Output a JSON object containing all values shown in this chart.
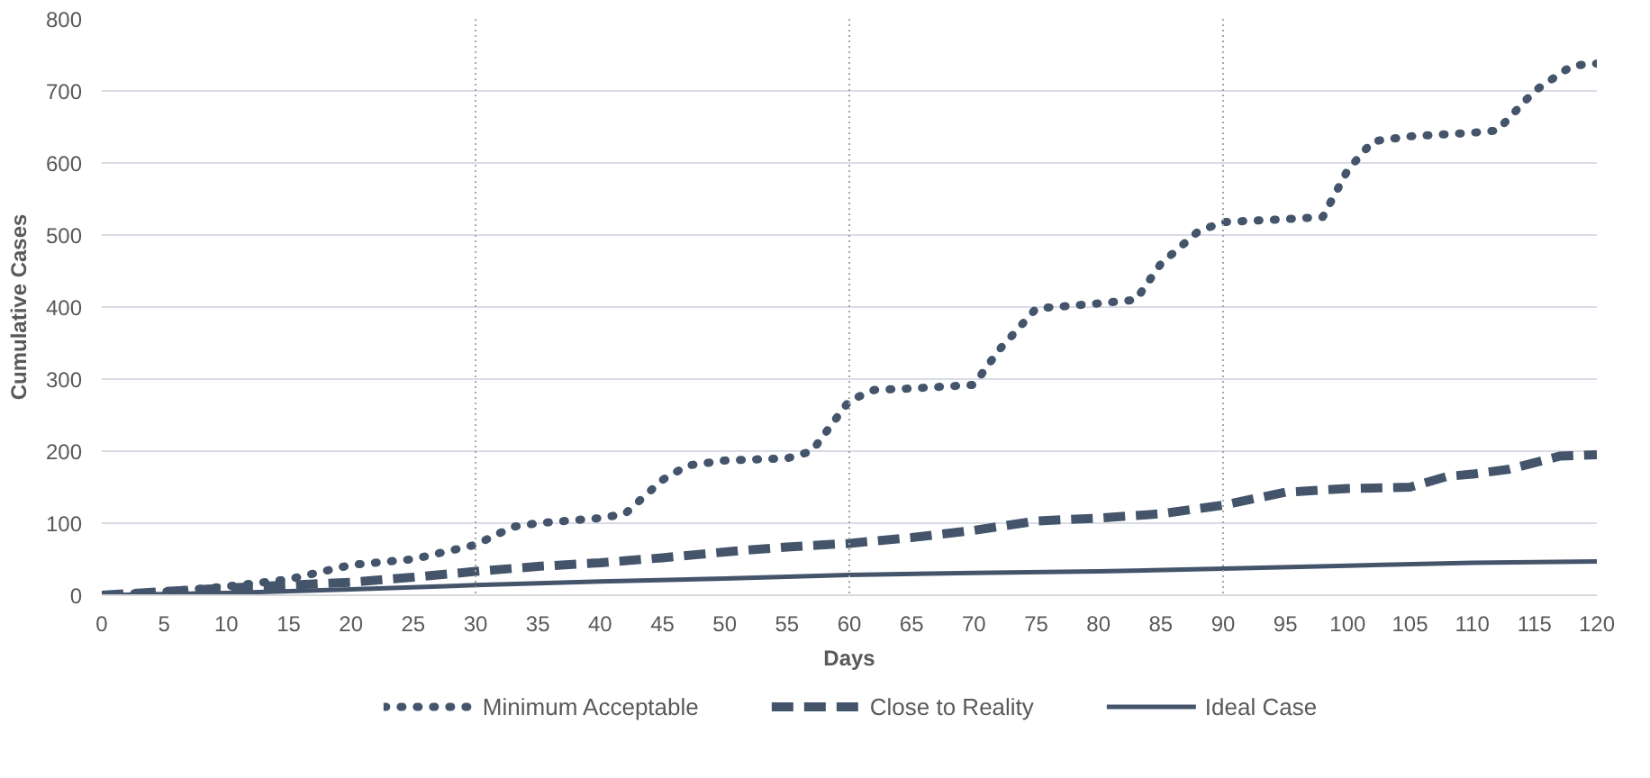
{
  "chart_data": {
    "type": "line",
    "xlabel": "Days",
    "ylabel": "Cumulative Cases",
    "xlim": [
      0,
      120
    ],
    "xticks": [
      0,
      5,
      10,
      15,
      20,
      25,
      30,
      35,
      40,
      45,
      50,
      55,
      60,
      65,
      70,
      75,
      80,
      85,
      90,
      95,
      100,
      105,
      110,
      115,
      120
    ],
    "ylim": [
      0,
      800
    ],
    "yticks": [
      0,
      100,
      200,
      300,
      400,
      500,
      600,
      700,
      800
    ],
    "grid": "y",
    "legend": "bottom",
    "ref_lines": [
      {
        "axis": "x",
        "value": 30,
        "line_style": "dotted",
        "color": "#a6a6a6"
      },
      {
        "axis": "x",
        "value": 60,
        "line_style": "dotted",
        "color": "#a6a6a6"
      },
      {
        "axis": "x",
        "value": 90,
        "line_style": "dotted",
        "color": "#a6a6a6"
      }
    ],
    "series": [
      {
        "name": "Minimum Acceptable",
        "color": "#44546a",
        "line_style": "dotted",
        "x": [
          0,
          5,
          10,
          15,
          20,
          25,
          30,
          33,
          35,
          40,
          42,
          45,
          47,
          50,
          55,
          57,
          60,
          62,
          65,
          70,
          72,
          75,
          80,
          83,
          85,
          88,
          90,
          95,
          98,
          100,
          102,
          105,
          110,
          112,
          115,
          118,
          120
        ],
        "values": [
          0,
          5,
          12,
          22,
          42,
          50,
          70,
          95,
          100,
          107,
          113,
          160,
          180,
          187,
          190,
          200,
          270,
          285,
          287,
          292,
          340,
          398,
          405,
          410,
          460,
          505,
          518,
          522,
          525,
          590,
          630,
          637,
          642,
          645,
          700,
          735,
          738
        ]
      },
      {
        "name": "Close to Reality",
        "color": "#44546a",
        "line_style": "dashed",
        "x": [
          0,
          5,
          10,
          15,
          20,
          25,
          30,
          35,
          40,
          45,
          50,
          55,
          60,
          65,
          70,
          75,
          80,
          85,
          90,
          95,
          100,
          105,
          108,
          110,
          113,
          117,
          120
        ],
        "values": [
          0,
          5,
          10,
          14,
          18,
          25,
          33,
          40,
          45,
          52,
          60,
          67,
          72,
          80,
          90,
          103,
          107,
          113,
          125,
          143,
          148,
          150,
          165,
          168,
          175,
          193,
          195
        ]
      },
      {
        "name": "Ideal Case",
        "color": "#44546a",
        "line_style": "solid",
        "x": [
          0,
          10,
          20,
          30,
          40,
          50,
          60,
          70,
          80,
          90,
          100,
          110,
          120
        ],
        "values": [
          0,
          3,
          8,
          14,
          19,
          23,
          28,
          31,
          33,
          37,
          41,
          45,
          47
        ]
      }
    ]
  }
}
